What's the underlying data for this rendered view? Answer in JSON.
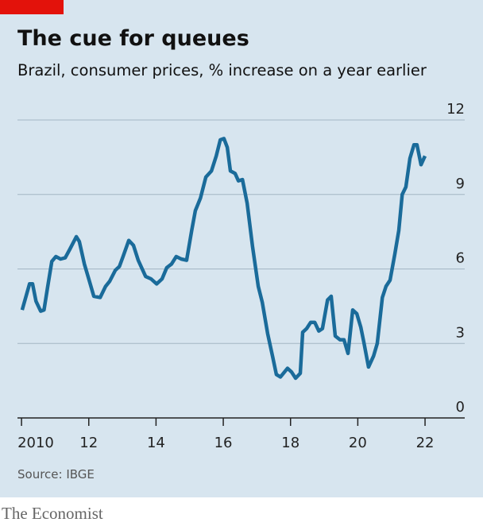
{
  "chart_data": {
    "type": "line",
    "title": "The cue for queues",
    "subtitle": "Brazil, consumer prices, % increase on a year earlier",
    "source": "Source: IBGE",
    "brand": "The Economist",
    "xlim": [
      2009.88,
      2023.18
    ],
    "xticks": [
      {
        "value": 2010,
        "label": "2010"
      },
      {
        "value": 2012,
        "label": "12"
      },
      {
        "value": 2014,
        "label": "14"
      },
      {
        "value": 2016,
        "label": "16"
      },
      {
        "value": 2018,
        "label": "18"
      },
      {
        "value": 2020,
        "label": "20"
      },
      {
        "value": 2022,
        "label": "22"
      }
    ],
    "ylim": [
      0,
      12
    ],
    "yticks": [
      0,
      3,
      6,
      9,
      12
    ],
    "grid": true,
    "series": [
      {
        "color": "#1a6b9a",
        "x": [
          2010.02,
          2010.24,
          2010.33,
          2010.43,
          2010.57,
          2010.67,
          2010.78,
          2010.9,
          2011.02,
          2011.16,
          2011.3,
          2011.44,
          2011.63,
          2011.72,
          2011.87,
          2012.01,
          2012.15,
          2012.34,
          2012.5,
          2012.62,
          2012.79,
          2012.91,
          2013.02,
          2013.19,
          2013.33,
          2013.47,
          2013.69,
          2013.85,
          2014.02,
          2014.18,
          2014.32,
          2014.46,
          2014.6,
          2014.75,
          2014.91,
          2015.06,
          2015.17,
          2015.32,
          2015.48,
          2015.65,
          2015.79,
          2015.91,
          2016.02,
          2016.12,
          2016.21,
          2016.35,
          2016.45,
          2016.57,
          2016.71,
          2016.87,
          2017.04,
          2017.16,
          2017.32,
          2017.47,
          2017.58,
          2017.7,
          2017.82,
          2017.91,
          2018.03,
          2018.15,
          2018.29,
          2018.36,
          2018.48,
          2018.6,
          2018.72,
          2018.84,
          2018.95,
          2019.1,
          2019.21,
          2019.33,
          2019.47,
          2019.59,
          2019.71,
          2019.85,
          2019.97,
          2020.09,
          2020.18,
          2020.32,
          2020.47,
          2020.58,
          2020.73,
          2020.84,
          2020.96,
          2021.1,
          2021.22,
          2021.32,
          2021.43,
          2021.55,
          2021.67,
          2021.76,
          2021.88,
          2022.0
        ],
        "values": [
          4.35,
          5.4,
          5.4,
          4.7,
          4.3,
          4.35,
          5.3,
          6.3,
          6.5,
          6.4,
          6.45,
          6.8,
          7.3,
          7.1,
          6.2,
          5.55,
          4.9,
          4.85,
          5.3,
          5.5,
          5.95,
          6.1,
          6.5,
          7.15,
          6.95,
          6.35,
          5.7,
          5.6,
          5.4,
          5.6,
          6.05,
          6.2,
          6.5,
          6.4,
          6.35,
          7.55,
          8.35,
          8.85,
          9.7,
          9.95,
          10.55,
          11.2,
          11.25,
          10.9,
          9.95,
          9.85,
          9.55,
          9.6,
          8.65,
          6.9,
          5.3,
          4.65,
          3.4,
          2.45,
          1.75,
          1.65,
          1.85,
          2.0,
          1.85,
          1.6,
          1.8,
          3.45,
          3.6,
          3.85,
          3.85,
          3.5,
          3.6,
          4.75,
          4.9,
          3.3,
          3.15,
          3.15,
          2.6,
          4.35,
          4.2,
          3.65,
          3.05,
          2.05,
          2.5,
          3.0,
          4.85,
          5.3,
          5.55,
          6.6,
          7.55,
          9.0,
          9.3,
          10.45,
          11.0,
          11.0,
          10.2,
          10.55
        ]
      }
    ]
  }
}
